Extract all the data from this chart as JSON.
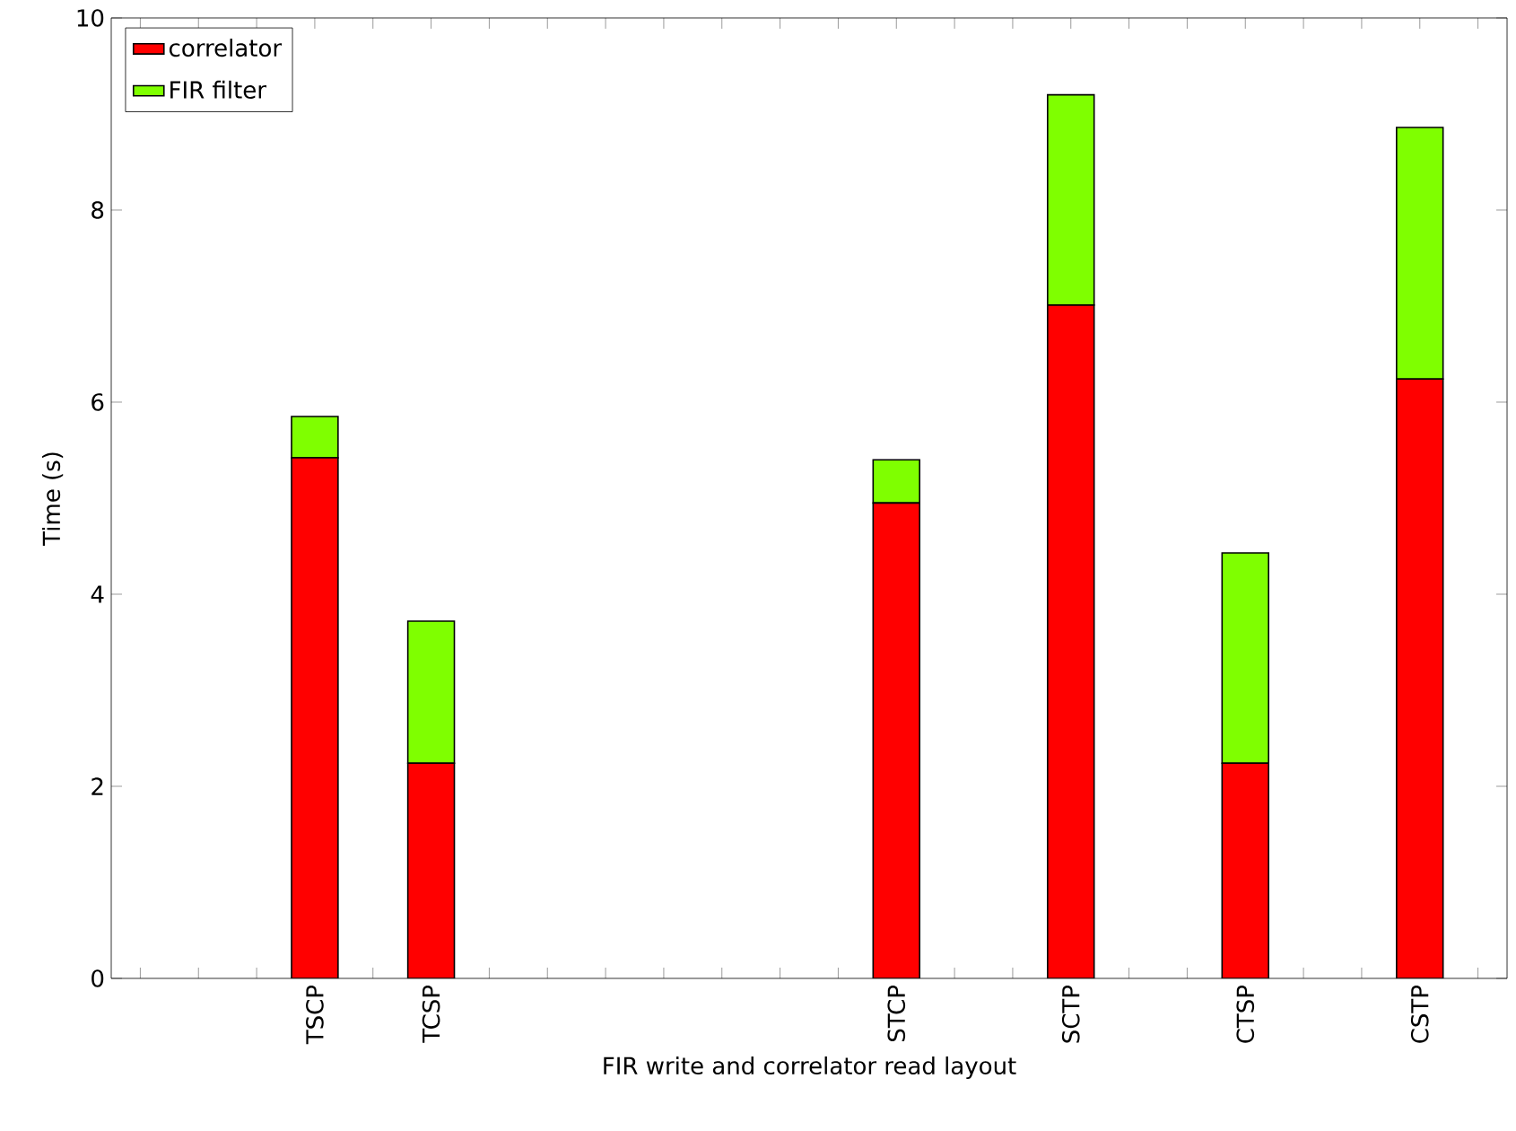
{
  "chart_data": {
    "type": "bar",
    "stacked": true,
    "xlabel": "FIR write and correlator read layout",
    "ylabel": "Time (s)",
    "categories": [
      null,
      null,
      null,
      "TSCP",
      null,
      "TCSP",
      null,
      null,
      null,
      null,
      null,
      null,
      null,
      "STCP",
      null,
      null,
      "SCTP",
      null,
      null,
      "CTSP",
      null,
      null,
      "CSTP",
      null
    ],
    "series": [
      {
        "name": "correlator",
        "color": "#ff0000",
        "values": [
          0,
          0,
          0,
          5.42,
          0,
          2.24,
          0,
          0,
          0,
          0,
          0,
          0,
          0,
          4.95,
          0,
          0,
          7.01,
          0,
          0,
          2.24,
          0,
          0,
          6.24,
          0
        ]
      },
      {
        "name": "FIR filter",
        "color": "#7fff00",
        "values": [
          0,
          0,
          0,
          0.43,
          0,
          1.48,
          0,
          0,
          0,
          0,
          0,
          0,
          0,
          0.45,
          0,
          0,
          2.19,
          0,
          0,
          2.19,
          0,
          0,
          2.62,
          0
        ]
      }
    ],
    "ylim": [
      0,
      10
    ],
    "yticks": [
      0,
      2,
      4,
      6,
      8,
      10
    ],
    "legend": "top left",
    "grid": false
  }
}
